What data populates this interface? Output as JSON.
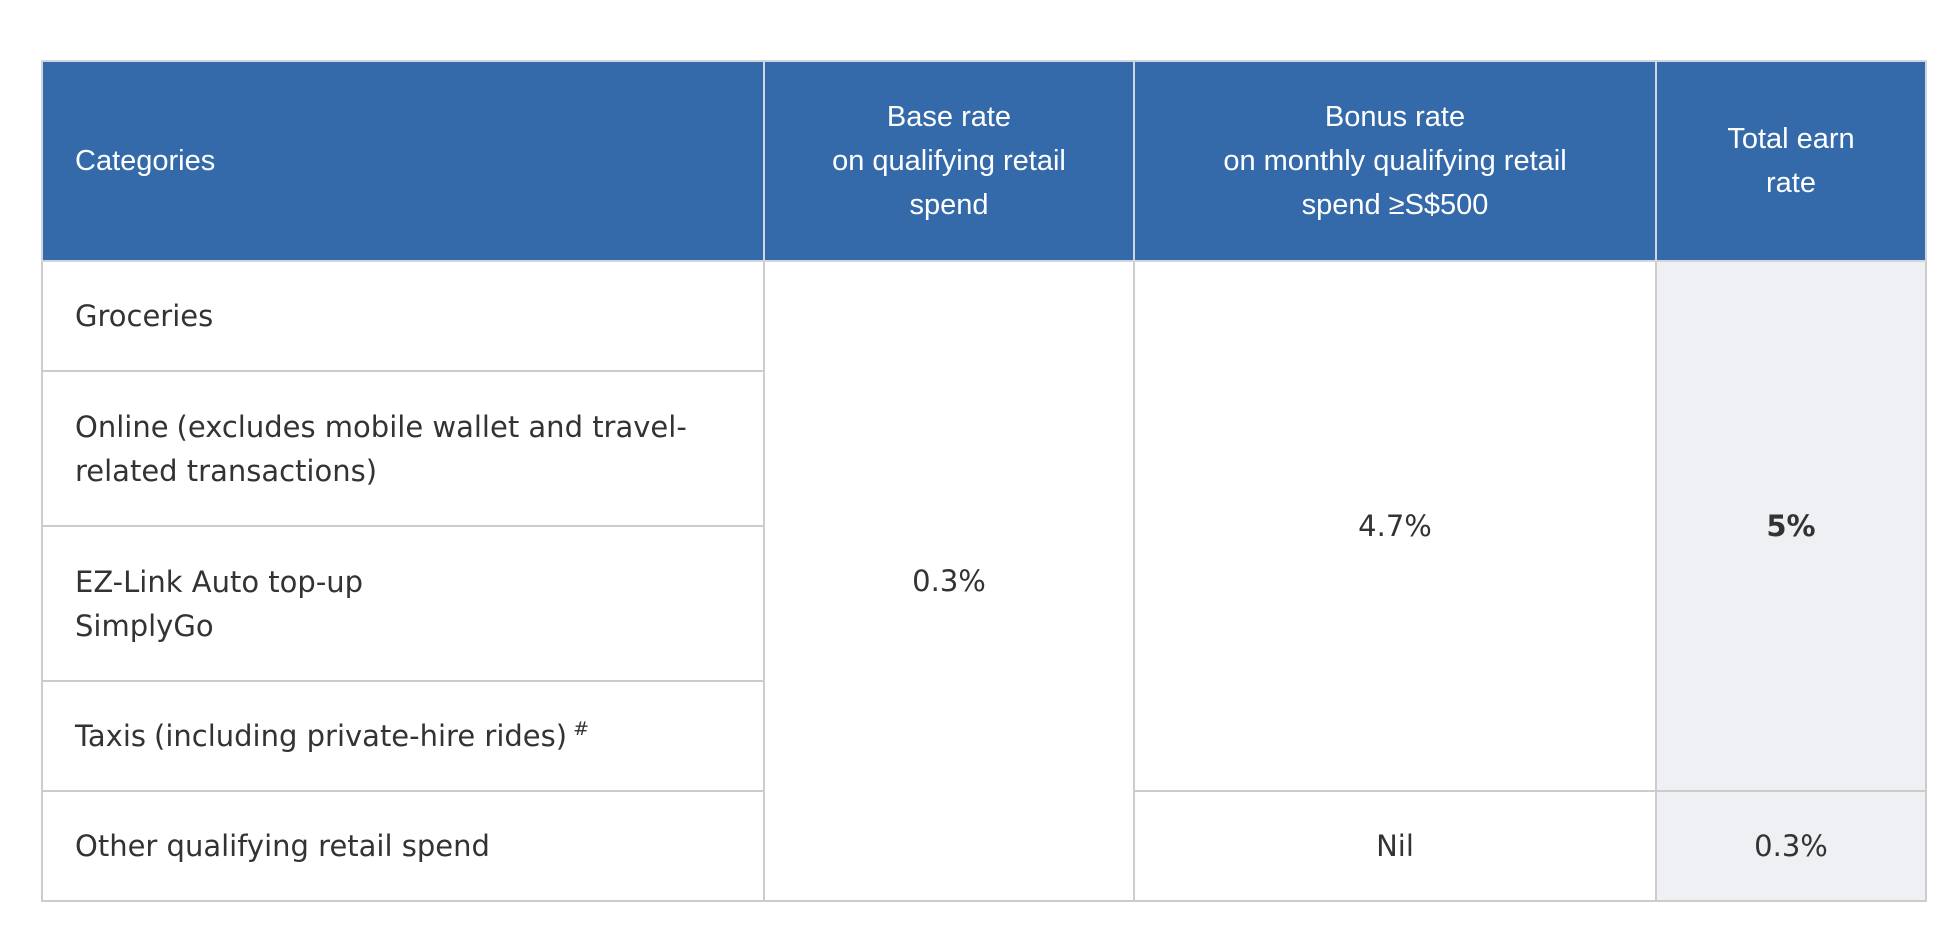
{
  "table": {
    "headers": {
      "categories": "Categories",
      "base_rate": [
        "Base rate",
        "on qualifying retail",
        "spend"
      ],
      "bonus_rate": [
        "Bonus rate",
        "on monthly qualifying retail",
        "spend ≥S$500"
      ],
      "total_earn": [
        "Total earn",
        "rate"
      ]
    },
    "rows": {
      "groceries": "Groceries",
      "online": {
        "label": "Online",
        "note": "(excludes mobile wallet and travel-related transactions)"
      },
      "ezlink": [
        "EZ-Link Auto top-up",
        "SimplyGo"
      ],
      "taxis": {
        "label": "Taxis",
        "note": "(including private-hire rides)",
        "footnote": "#"
      },
      "other": "Other qualifying retail spend"
    },
    "values": {
      "base_rate": "0.3%",
      "bonus_rate_bonus_categories": "4.7%",
      "total_bonus_categories": "5%",
      "bonus_rate_other": "Nil",
      "total_other": "0.3%"
    }
  },
  "colors": {
    "header_bg": "#346aa9",
    "header_text": "#ffffff",
    "total_column_bg": "#eef0f4",
    "border": "#cccccc",
    "body_text": "#333333"
  }
}
